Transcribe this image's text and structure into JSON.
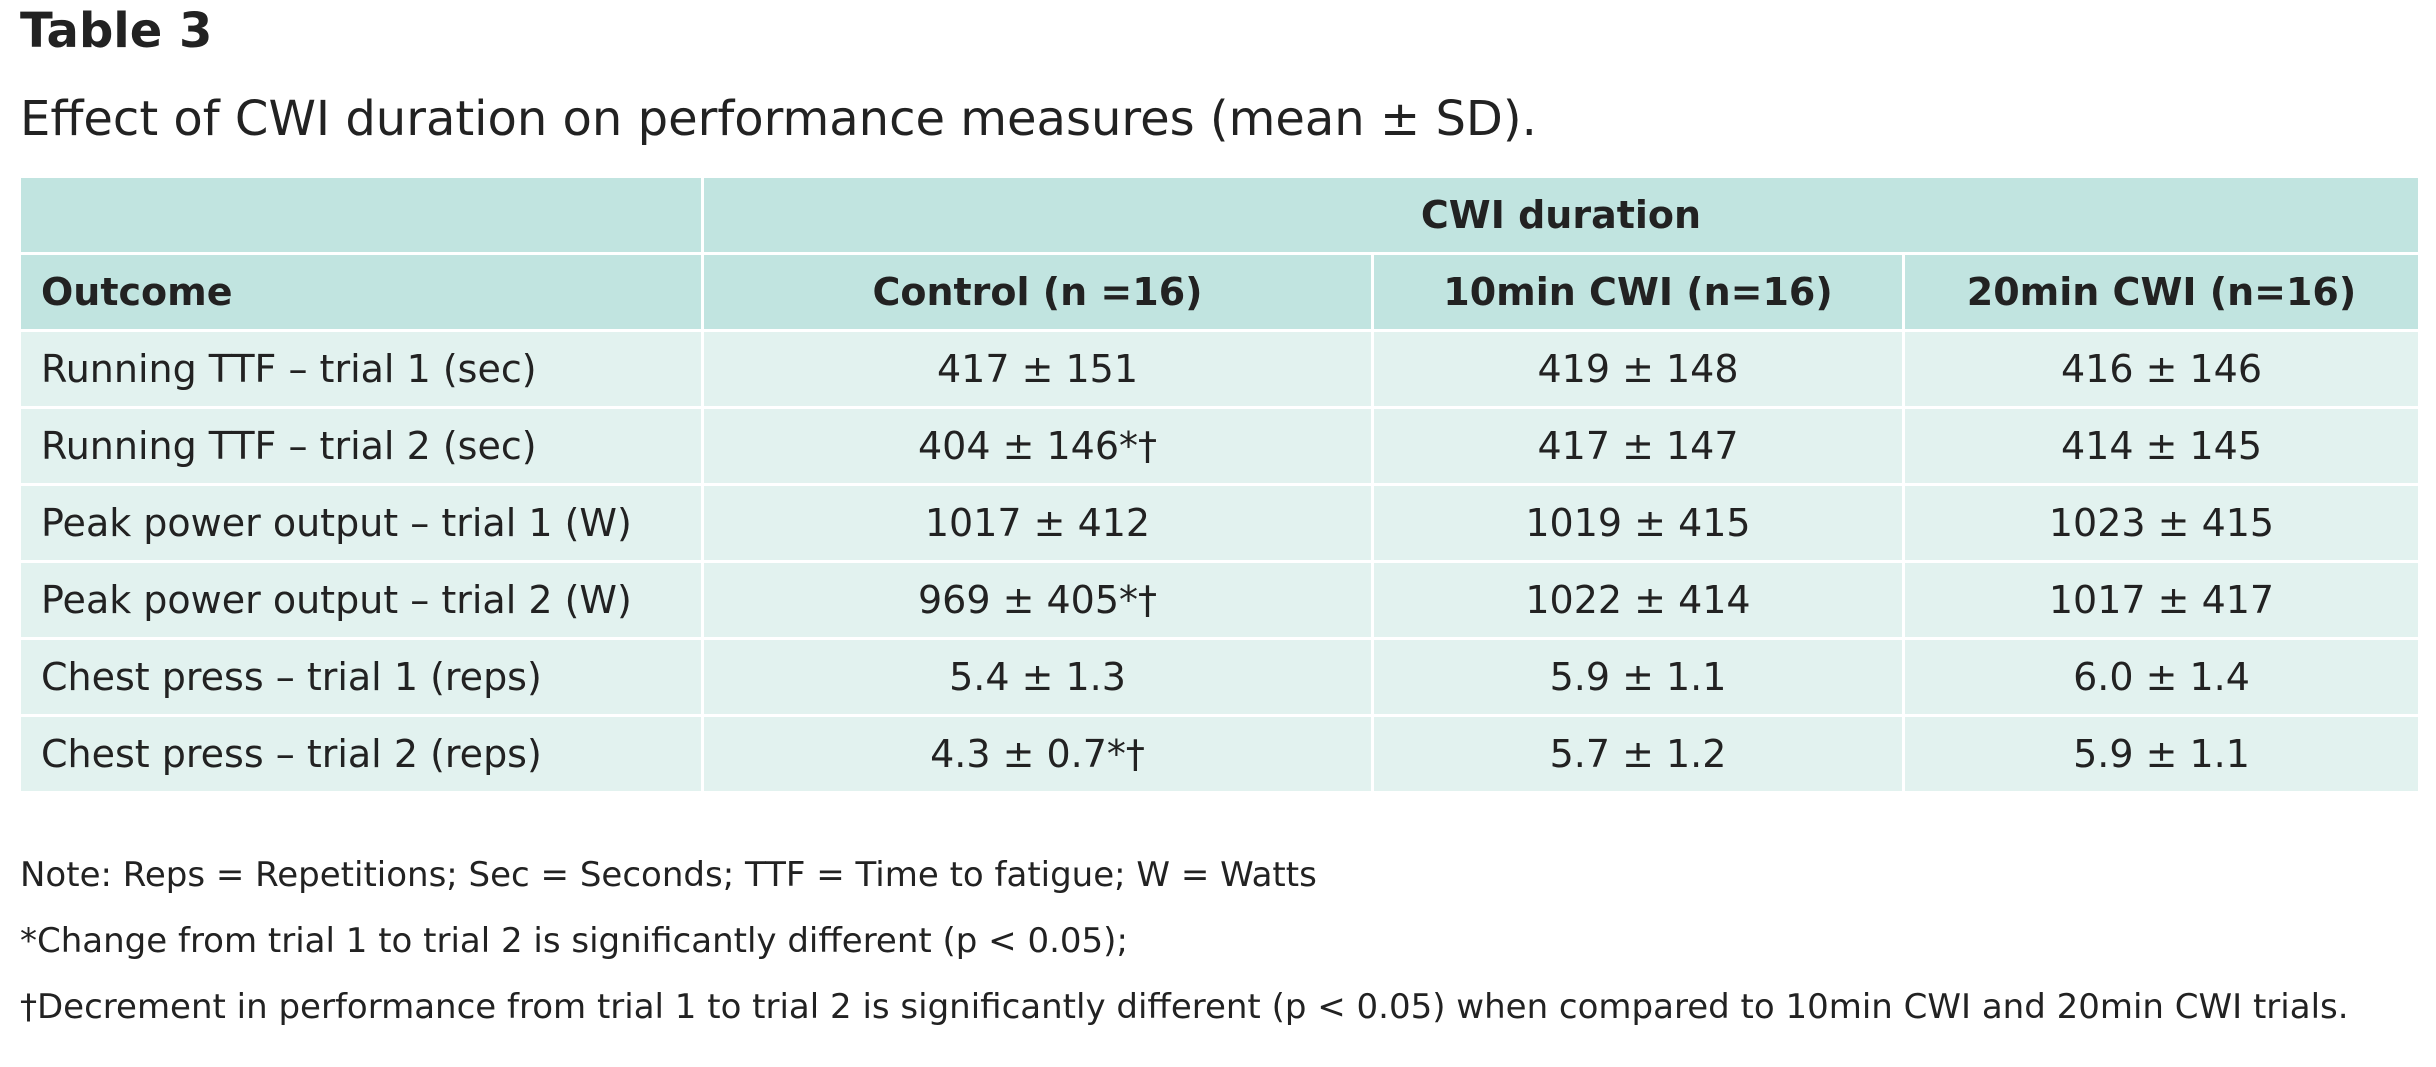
{
  "title": "Table 3",
  "caption": "Effect of CWI duration on performance measures (mean ± SD).",
  "table": {
    "group_header": "CWI duration",
    "columns": [
      "Outcome",
      "Control (n =16)",
      "10min CWI (n=16)",
      "20min CWI (n=16)"
    ],
    "rows": [
      {
        "label": "Running TTF – trial 1 (sec)",
        "control": "417 ± 151",
        "cwi10": "419 ± 148",
        "cwi20": "416 ± 146"
      },
      {
        "label": "Running TTF – trial 2 (sec)",
        "control": "404 ± 146*†",
        "cwi10": "417 ± 147",
        "cwi20": "414 ± 145"
      },
      {
        "label": "Peak power output – trial 1 (W)",
        "control": "1017 ± 412",
        "cwi10": "1019 ± 415",
        "cwi20": "1023 ± 415"
      },
      {
        "label": "Peak power output – trial 2 (W)",
        "control": "969 ± 405*†",
        "cwi10": "1022 ± 414",
        "cwi20": "1017 ± 417"
      },
      {
        "label": "Chest press – trial 1 (reps)",
        "control": "5.4 ± 1.3",
        "cwi10": "5.9 ± 1.1",
        "cwi20": "6.0 ± 1.4"
      },
      {
        "label": "Chest press – trial 2 (reps)",
        "control": "4.3 ± 0.7*†",
        "cwi10": "5.7 ± 1.2",
        "cwi20": "5.9 ± 1.1"
      }
    ]
  },
  "notes": [
    "Note: Reps = Repetitions; Sec = Seconds; TTF = Time to fatigue; W = Watts",
    "*Change from trial 1 to trial 2 is significantly different (p < 0.05);",
    "†Decrement in performance from trial 1 to trial 2 is significantly different (p < 0.05) when compared to 10min CWI and 20min CWI trials."
  ],
  "colors": {
    "header_bg": "#c1e4e0",
    "body_bg": "#e2f2ef",
    "text": "#222222"
  }
}
